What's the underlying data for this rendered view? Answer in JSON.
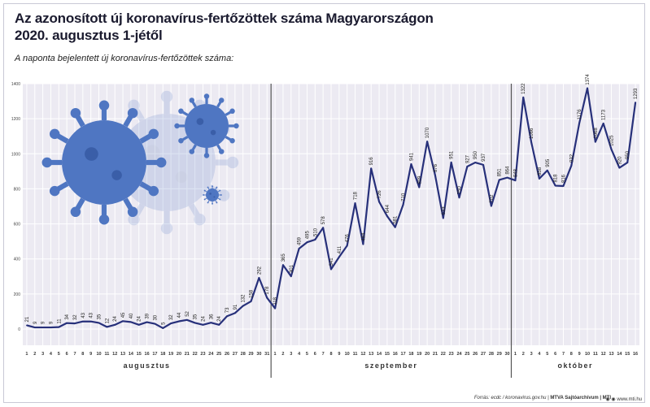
{
  "header": {
    "title_line1": "Az azonosított új koronavírus-fertőzöttek száma Magyarországon",
    "title_line2": "2020. augusztus 1-jétől",
    "subtitle": "A naponta bejelentett új koronavírus-fertőzöttek száma:"
  },
  "footer": {
    "source": "Forrás: ecdc / koronavirus.gov.hu",
    "credit": "MTVA Sajtóarchívum | MTI",
    "url": "www.mti.hu"
  },
  "colors": {
    "line": "#27307a",
    "grid_bg": "#eceaf2",
    "grid_line": "#ffffff",
    "virus": "#4f76c2"
  },
  "chart_data": {
    "type": "line",
    "ylim": [
      0,
      1400
    ],
    "y_ticks": [
      0,
      200,
      400,
      600,
      800,
      1000,
      1200,
      1400
    ],
    "months": [
      {
        "name": "augusztus",
        "days": 31
      },
      {
        "name": "szeptember",
        "days": 30
      },
      {
        "name": "október",
        "days": 16
      }
    ],
    "x_labels": [
      "1",
      "2",
      "3",
      "4",
      "5",
      "6",
      "7",
      "8",
      "9",
      "10",
      "11",
      "12",
      "13",
      "14",
      "15",
      "16",
      "17",
      "18",
      "19",
      "20",
      "21",
      "22",
      "23",
      "24",
      "25",
      "26",
      "27",
      "28",
      "29",
      "30",
      "31",
      "1",
      "2",
      "3",
      "4",
      "5",
      "6",
      "7",
      "8",
      "9",
      "10",
      "11",
      "12",
      "13",
      "14",
      "15",
      "16",
      "17",
      "18",
      "19",
      "20",
      "21",
      "22",
      "23",
      "24",
      "25",
      "26",
      "27",
      "28",
      "29",
      "30",
      "1",
      "2",
      "3",
      "4",
      "5",
      "6",
      "7",
      "8",
      "9",
      "10",
      "11",
      "12",
      "13",
      "14",
      "15",
      "16"
    ],
    "values": [
      21,
      9,
      9,
      9,
      11,
      34,
      32,
      43,
      43,
      35,
      12,
      24,
      45,
      40,
      24,
      39,
      30,
      5,
      32,
      44,
      52,
      35,
      24,
      36,
      24,
      73,
      91,
      132,
      158,
      292,
      178,
      118,
      365,
      301,
      459,
      495,
      510,
      578,
      341,
      411,
      476,
      718,
      484,
      916,
      726,
      644,
      581,
      710,
      941,
      809,
      1070,
      876,
      633,
      951,
      750,
      927,
      950,
      937,
      702,
      851,
      864,
      848,
      1322,
      1066,
      858,
      905,
      818,
      816,
      932,
      1176,
      1374,
      1068,
      1173,
      1025,
      920,
      950,
      1293
    ],
    "data_labels": [
      "21",
      "9",
      "9",
      "9",
      "11",
      "34",
      "32",
      "43",
      "43",
      "35",
      "12",
      "24",
      "45",
      "40",
      "24",
      "39",
      "30",
      "5",
      "32",
      "44",
      "52",
      "35",
      "24",
      "36",
      "24",
      "73",
      "91",
      "132",
      "158",
      "292",
      "178",
      "118",
      "365",
      "301",
      "459",
      "495",
      "510",
      "578",
      "341",
      "411",
      "476",
      "718",
      "484",
      "916",
      "726",
      "644",
      "581",
      "710",
      "941",
      "809",
      "1070",
      "876",
      "633",
      "951",
      "750",
      "927",
      "950",
      "937",
      "702",
      "851",
      "864",
      "848",
      "1322",
      "1066",
      "858",
      "905",
      "818",
      "816",
      "932",
      "1176",
      "1374",
      "1068",
      "1173",
      "1025",
      "920",
      "950",
      "1293"
    ]
  }
}
